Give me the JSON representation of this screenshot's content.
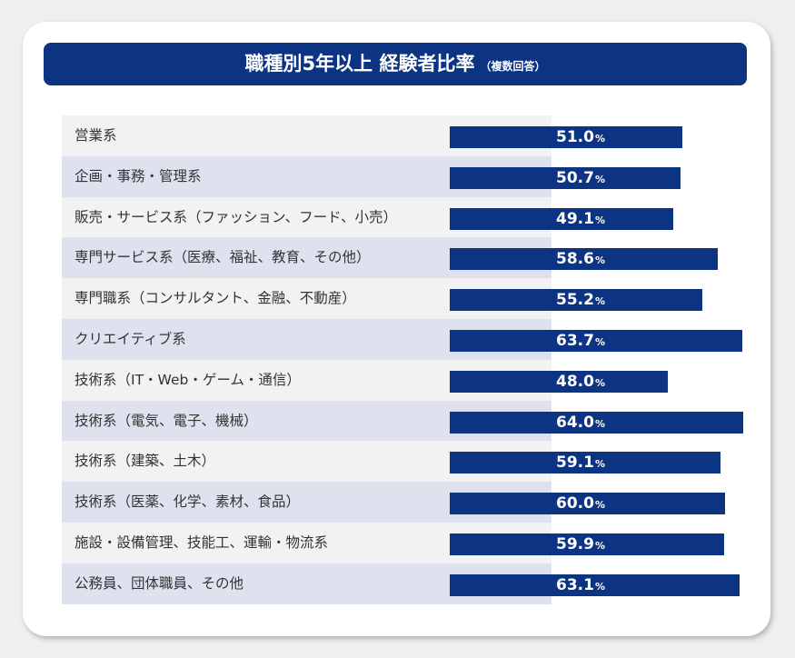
{
  "chart_data": {
    "type": "bar",
    "orientation": "horizontal",
    "title": "職種別5年以上 経験者比率",
    "subtitle": "（複数回答）",
    "unit": "%",
    "categories": [
      "営業系",
      "企画・事務・管理系",
      "販売・サービス系（ファッション、フード、小売）",
      "専門サービス系（医療、福祉、教育、その他）",
      "専門職系（コンサルタント、金融、不動産）",
      "クリエイティブ系",
      "技術系（IT・Web・ゲーム・通信）",
      "技術系（電気、電子、機械）",
      "技術系（建築、土木）",
      "技術系（医薬、化学、素材、食品）",
      "施設・設備管理、技能工、運輸・物流系",
      "公務員、団体職員、その他"
    ],
    "values": [
      51.0,
      50.7,
      49.1,
      58.6,
      55.2,
      63.7,
      48.0,
      64.0,
      59.1,
      60.0,
      59.9,
      63.1
    ],
    "value_labels": [
      "51.0",
      "50.7",
      "49.1",
      "58.6",
      "55.2",
      "63.7",
      "48.0",
      "64.0",
      "59.1",
      "60.0",
      "59.9",
      "63.1"
    ],
    "colors": {
      "bar": "#0d3482",
      "row_odd": "#f2f2f2",
      "row_even": "#dde2ee",
      "title_bg": "#0d3482"
    }
  }
}
